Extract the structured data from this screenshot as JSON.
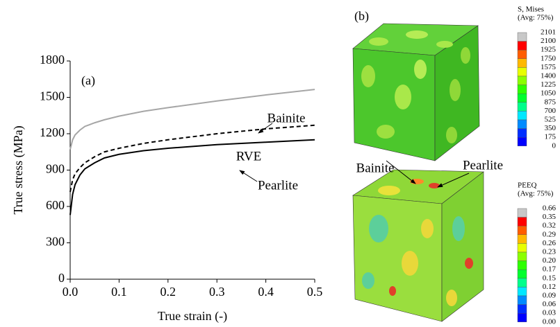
{
  "chart_data": {
    "type": "line",
    "panel_label": "(a)",
    "x_label": "True strain (-)",
    "y_label": "True stress (MPa)",
    "x": [
      0,
      0.005,
      0.01,
      0.02,
      0.03,
      0.05,
      0.07,
      0.1,
      0.15,
      0.2,
      0.3,
      0.4,
      0.5
    ],
    "series": [
      {
        "name": "Bainite",
        "color": "#a6a6a6",
        "dash": false,
        "values": [
          1070,
          1150,
          1190,
          1230,
          1260,
          1290,
          1315,
          1345,
          1385,
          1415,
          1470,
          1520,
          1565
        ]
      },
      {
        "name": "RVE",
        "color": "#000000",
        "dash": true,
        "values": [
          720,
          820,
          870,
          920,
          960,
          1010,
          1050,
          1080,
          1120,
          1150,
          1200,
          1240,
          1270
        ]
      },
      {
        "name": "Pearlite",
        "color": "#000000",
        "dash": false,
        "values": [
          530,
          700,
          780,
          860,
          910,
          960,
          1000,
          1030,
          1060,
          1080,
          1110,
          1130,
          1150
        ]
      }
    ],
    "xlim": [
      0,
      0.5
    ],
    "xticks": [
      {
        "value": 0,
        "label": "0.0"
      },
      0.1,
      0.2,
      0.3,
      0.4,
      0.5
    ],
    "ylim": [
      0,
      1800
    ],
    "yticks": [
      0,
      300,
      600,
      900,
      1200,
      1500,
      1800
    ],
    "grid": false
  },
  "panel_b": {
    "panel_label": "(b)",
    "annotations": [
      "Bainite",
      "Pearlite"
    ],
    "colorbars": [
      {
        "title": [
          "S, Mises",
          "(Avg: 75%)"
        ],
        "labels": [
          "2101",
          "2100",
          "1925",
          "1750",
          "1575",
          "1400",
          "1225",
          "1050",
          "875",
          "700",
          "525",
          "350",
          "175",
          "0"
        ],
        "colors": [
          "#c8c8c8",
          "#ff0000",
          "#ff5d00",
          "#ffb900",
          "#e8ff00",
          "#8bff00",
          "#2eff00",
          "#00ff2e",
          "#00ff8b",
          "#00e8ff",
          "#008bff",
          "#002eff",
          "#0000ff"
        ]
      },
      {
        "title": [
          "PEEQ",
          "(Avg: 75%)"
        ],
        "labels": [
          "0.66",
          "0.35",
          "0.32",
          "0.29",
          "0.26",
          "0.23",
          "0.20",
          "0.17",
          "0.15",
          "0.12",
          "0.09",
          "0.06",
          "0.03",
          "0.00"
        ],
        "colors": [
          "#c8c8c8",
          "#ff0000",
          "#ff5d00",
          "#ffb900",
          "#e8ff00",
          "#8bff00",
          "#2eff00",
          "#00ff2e",
          "#00ff8b",
          "#00e8ff",
          "#008bff",
          "#002eff",
          "#0000ff"
        ]
      }
    ]
  }
}
